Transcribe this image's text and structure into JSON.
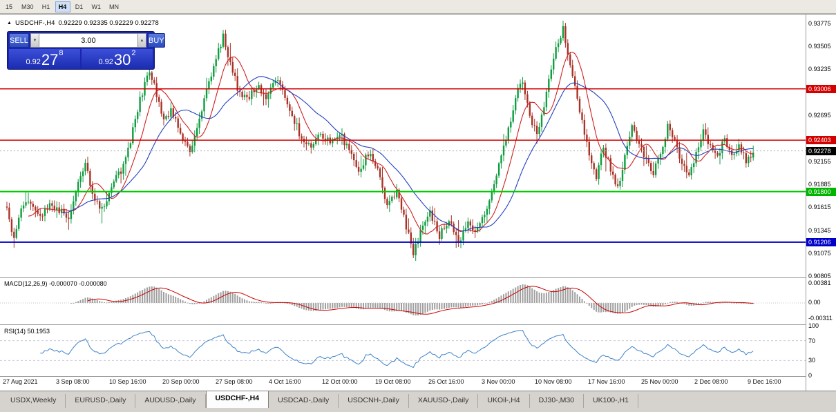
{
  "toolbar": {
    "timeframes": [
      "15",
      "M30",
      "H1",
      "H4",
      "D1",
      "W1",
      "MN"
    ],
    "active": "H4"
  },
  "chart_header": {
    "direction_icon": "▲",
    "symbol_period": "USDCHF-,H4",
    "ohlc": "0.92229 0.92335 0.92229 0.92278"
  },
  "trade_panel": {
    "sell_label": "SELL",
    "buy_label": "BUY",
    "volume": "3.00",
    "vol_down_icon": "▼",
    "vol_up_icon": "▲",
    "sell_price": {
      "base": "0.92",
      "pips": "27",
      "point": "8"
    },
    "buy_price": {
      "base": "0.92",
      "pips": "30",
      "point": "2"
    }
  },
  "chart_data": {
    "type": "candlestick",
    "symbol": "USDCHF-",
    "timeframe": "H4",
    "current_bid": "0.92278",
    "visible_range": {
      "price_min": 0.908,
      "price_max": 0.9383
    },
    "num_candles": 315,
    "anchors": [
      [
        0,
        0.916
      ],
      [
        3,
        0.9122
      ],
      [
        6,
        0.9158
      ],
      [
        10,
        0.9168
      ],
      [
        14,
        0.9152
      ],
      [
        18,
        0.9165
      ],
      [
        22,
        0.9158
      ],
      [
        26,
        0.9148
      ],
      [
        30,
        0.9188
      ],
      [
        33,
        0.9215
      ],
      [
        36,
        0.9178
      ],
      [
        40,
        0.9158
      ],
      [
        44,
        0.9188
      ],
      [
        48,
        0.9205
      ],
      [
        52,
        0.924
      ],
      [
        56,
        0.9288
      ],
      [
        60,
        0.9322
      ],
      [
        63,
        0.9295
      ],
      [
        66,
        0.9262
      ],
      [
        69,
        0.9275
      ],
      [
        73,
        0.9248
      ],
      [
        77,
        0.9228
      ],
      [
        80,
        0.9252
      ],
      [
        84,
        0.9298
      ],
      [
        88,
        0.9338
      ],
      [
        91,
        0.9362
      ],
      [
        94,
        0.933
      ],
      [
        97,
        0.9302
      ],
      [
        101,
        0.9288
      ],
      [
        105,
        0.9305
      ],
      [
        109,
        0.929
      ],
      [
        113,
        0.9312
      ],
      [
        116,
        0.9298
      ],
      [
        120,
        0.927
      ],
      [
        124,
        0.9242
      ],
      [
        128,
        0.923
      ],
      [
        132,
        0.9248
      ],
      [
        136,
        0.9236
      ],
      [
        140,
        0.925
      ],
      [
        144,
        0.9228
      ],
      [
        148,
        0.9202
      ],
      [
        152,
        0.9225
      ],
      [
        156,
        0.9205
      ],
      [
        160,
        0.9162
      ],
      [
        164,
        0.9182
      ],
      [
        168,
        0.914
      ],
      [
        171,
        0.9108
      ],
      [
        174,
        0.9132
      ],
      [
        178,
        0.9155
      ],
      [
        182,
        0.9128
      ],
      [
        186,
        0.9148
      ],
      [
        190,
        0.9122
      ],
      [
        194,
        0.9142
      ],
      [
        198,
        0.9135
      ],
      [
        202,
        0.9162
      ],
      [
        206,
        0.9198
      ],
      [
        210,
        0.9242
      ],
      [
        214,
        0.929
      ],
      [
        217,
        0.9312
      ],
      [
        220,
        0.9268
      ],
      [
        223,
        0.9246
      ],
      [
        226,
        0.9282
      ],
      [
        229,
        0.9324
      ],
      [
        232,
        0.9356
      ],
      [
        234,
        0.9372
      ],
      [
        236,
        0.9344
      ],
      [
        239,
        0.9306
      ],
      [
        242,
        0.9262
      ],
      [
        245,
        0.922
      ],
      [
        248,
        0.9198
      ],
      [
        251,
        0.9232
      ],
      [
        254,
        0.9206
      ],
      [
        257,
        0.9182
      ],
      [
        260,
        0.9222
      ],
      [
        263,
        0.9256
      ],
      [
        266,
        0.9238
      ],
      [
        269,
        0.9218
      ],
      [
        272,
        0.92
      ],
      [
        275,
        0.9226
      ],
      [
        278,
        0.9256
      ],
      [
        281,
        0.9238
      ],
      [
        284,
        0.9212
      ],
      [
        287,
        0.9196
      ],
      [
        290,
        0.9226
      ],
      [
        293,
        0.925
      ],
      [
        296,
        0.9234
      ],
      [
        299,
        0.922
      ],
      [
        302,
        0.9242
      ],
      [
        305,
        0.9224
      ],
      [
        308,
        0.9236
      ],
      [
        311,
        0.9214
      ],
      [
        314,
        0.9228
      ]
    ],
    "price_axis_ticks": [
      "0.93775",
      "0.93505",
      "0.93235",
      "0.92965",
      "0.92695",
      "0.92425",
      "0.92155",
      "0.91885",
      "0.91615",
      "0.91345",
      "0.91075",
      "0.90805"
    ],
    "price_tags": [
      {
        "label": "0.93006",
        "price": 0.93006,
        "bg": "#d40000"
      },
      {
        "label": "0.92403",
        "price": 0.92403,
        "bg": "#d40000"
      },
      {
        "label": "0.92278",
        "price": 0.92278,
        "bg": "#000000"
      },
      {
        "label": "0.91800",
        "price": 0.918,
        "bg": "#00b400"
      },
      {
        "label": "0.91206",
        "price": 0.91206,
        "bg": "#0000c8"
      }
    ],
    "horizontal_lines": [
      {
        "price": 0.93006,
        "color": "#d40000",
        "width": 1.5,
        "style": "solid"
      },
      {
        "price": 0.92403,
        "color": "#d40000",
        "width": 1.5,
        "style": "solid"
      },
      {
        "price": 0.918,
        "color": "#00cc00",
        "width": 2,
        "style": "solid"
      },
      {
        "price": 0.91206,
        "color": "#0000c8",
        "width": 2,
        "style": "solid"
      },
      {
        "price": 0.92278,
        "color": "#aaaaaa",
        "width": 1,
        "style": "dotted"
      }
    ],
    "x_ticks": [
      "27 Aug 2021",
      "3 Sep 08:00",
      "10 Sep 16:00",
      "20 Sep 00:00",
      "27 Sep 08:00",
      "4 Oct 16:00",
      "12 Oct 00:00",
      "19 Oct 08:00",
      "26 Oct 16:00",
      "3 Nov 00:00",
      "10 Nov 08:00",
      "17 Nov 16:00",
      "25 Nov 00:00",
      "2 Dec 08:00",
      "9 Dec 16:00"
    ],
    "indicators": {
      "macd": {
        "label": "MACD(12,26,9)",
        "values": "-0.000070 -0.000080",
        "axis_ticks": [
          "0.00381",
          "0.00",
          "-0.00311"
        ]
      },
      "rsi": {
        "label": "RSI(14)",
        "value": "50.1953",
        "axis_ticks": [
          100,
          70,
          30,
          0
        ],
        "levels": [
          70,
          30
        ]
      }
    },
    "colors": {
      "up": "#0e9d3f",
      "down": "#a93226",
      "ma_fast": "#d02020",
      "ma_slow": "#2040c0",
      "macd_hist": "#a0a0a0",
      "macd_signal": "#cc0000",
      "rsi": "#3c82c8"
    }
  },
  "tabs": {
    "active_index": 3,
    "items": [
      "USDX,Weekly",
      "EURUSD-,Daily",
      "AUDUSD-,Daily",
      "USDCHF-,H4",
      "USDCAD-,Daily",
      "USDCNH-,Daily",
      "XAUUSD-,Daily",
      "UKOil-,H4",
      "DJ30-,M30",
      "UK100-,H1"
    ]
  }
}
